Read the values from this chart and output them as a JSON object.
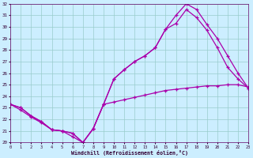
{
  "xlabel": "Windchill (Refroidissement éolien,°C)",
  "xlim": [
    0,
    23
  ],
  "ylim": [
    20,
    32
  ],
  "xticks": [
    0,
    1,
    2,
    3,
    4,
    5,
    6,
    7,
    8,
    9,
    10,
    11,
    12,
    13,
    14,
    15,
    16,
    17,
    18,
    19,
    20,
    21,
    22,
    23
  ],
  "yticks": [
    20,
    21,
    22,
    23,
    24,
    25,
    26,
    27,
    28,
    29,
    30,
    31,
    32
  ],
  "bg_color": "#cceeff",
  "line_color": "#aa00aa",
  "grid_color": "#99cccc",
  "line1_x": [
    0,
    1,
    2,
    3,
    4,
    5,
    6,
    7,
    8,
    9,
    10,
    11,
    12,
    13,
    14,
    15,
    16,
    17,
    18,
    19,
    20,
    21,
    22,
    23
  ],
  "line1_y": [
    23.3,
    23.0,
    22.3,
    21.8,
    21.1,
    21.0,
    20.8,
    20.0,
    21.2,
    23.3,
    25.5,
    26.3,
    27.0,
    27.5,
    28.2,
    29.8,
    31.0,
    32.0,
    31.5,
    30.2,
    29.0,
    27.5,
    26.0,
    24.7
  ],
  "line2_x": [
    0,
    1,
    2,
    3,
    4,
    5,
    6,
    7,
    8,
    9,
    10,
    11,
    12,
    13,
    14,
    15,
    16,
    17,
    18,
    19,
    20,
    21,
    22,
    23
  ],
  "line2_y": [
    23.3,
    23.0,
    22.3,
    21.8,
    21.1,
    21.0,
    20.8,
    20.0,
    21.2,
    23.3,
    25.5,
    26.3,
    27.0,
    27.5,
    28.2,
    29.8,
    30.3,
    31.5,
    30.8,
    29.7,
    28.2,
    26.5,
    25.5,
    24.7
  ],
  "line3_x": [
    0,
    1,
    2,
    3,
    4,
    5,
    6,
    7,
    8,
    9,
    10,
    11,
    12,
    13,
    14,
    15,
    16,
    17,
    18,
    19,
    20,
    21,
    22,
    23
  ],
  "line3_y": [
    23.3,
    22.8,
    22.2,
    21.7,
    21.1,
    21.0,
    20.5,
    20.0,
    21.2,
    23.3,
    23.5,
    23.7,
    23.9,
    24.1,
    24.3,
    24.5,
    24.6,
    24.7,
    24.8,
    24.9,
    24.9,
    25.0,
    25.0,
    24.8
  ]
}
